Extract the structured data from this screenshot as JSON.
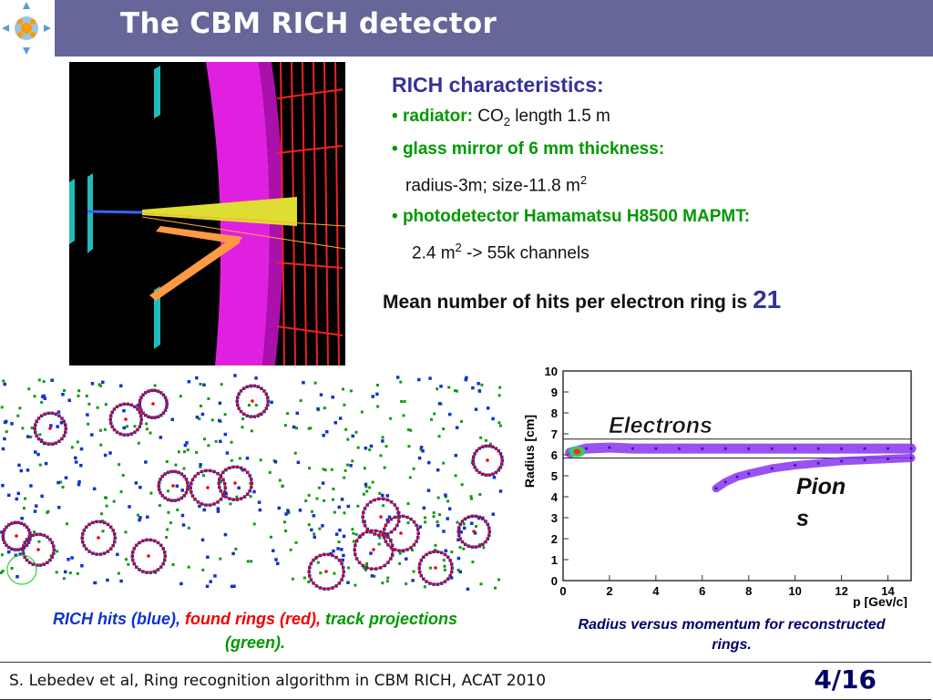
{
  "header": {
    "title": "The CBM RICH detector"
  },
  "characteristics": {
    "heading": "RICH characteristics:",
    "bullet1": {
      "label": "radiator:",
      "text_a": "CO",
      "sub": "2",
      "text_b": " length 1.5 m"
    },
    "bullet2": {
      "label": "glass mirror of 6 mm thickness:",
      "detail": "radius-3m; size-11.8 m",
      "sup": "2"
    },
    "bullet3": {
      "label": "photodetector Hamamatsu H8500 MAPMT:",
      "detail_a": "2.4 m",
      "sup": "2",
      "detail_b": " -> 55k channels"
    }
  },
  "mean_hits": {
    "text": "Mean number of hits per electron ring is ",
    "value": "21"
  },
  "hits_caption": {
    "blue": "RICH hits (blue),",
    "red": "found rings (red),",
    "green": "track projections (green)."
  },
  "plot_caption": "Radius versus momentum for reconstructed rings.",
  "footer": {
    "citation": "S. Lebedev et al, Ring recognition algorithm in CBM RICH, ACAT 2010",
    "page": "4/16"
  },
  "colors": {
    "header": "#666699",
    "accent": "#333399",
    "green": "#009900",
    "red": "#ee0000",
    "blue": "#1133cc"
  },
  "chart_data": {
    "type": "scatter",
    "xlabel": "p [Gev/c]",
    "ylabel": "Radius [cm]",
    "xlim": [
      0,
      15
    ],
    "ylim": [
      0,
      10
    ],
    "xticks": [
      "0",
      "2",
      "4",
      "6",
      "8",
      "10",
      "12",
      "14"
    ],
    "yticks": [
      "0",
      "1",
      "2",
      "3",
      "4",
      "5",
      "6",
      "7",
      "8",
      "9",
      "10"
    ],
    "annotations": [
      "Electrons",
      "Pion",
      "s"
    ],
    "reference_lines_y": [
      5.85,
      6.75
    ],
    "series": [
      {
        "x": [
          0.3,
          1,
          2,
          3,
          4,
          5,
          6,
          7,
          8,
          9,
          10,
          11,
          12,
          13,
          14,
          15
        ],
        "y": [
          6.1,
          6.3,
          6.35,
          6.3,
          6.3,
          6.3,
          6.3,
          6.3,
          6.3,
          6.3,
          6.3,
          6.3,
          6.3,
          6.3,
          6.3,
          6.3
        ]
      },
      {
        "x": [
          6.6,
          7,
          7.5,
          8,
          9,
          10,
          11,
          12,
          13,
          14,
          15
        ],
        "y": [
          4.4,
          4.7,
          4.95,
          5.1,
          5.35,
          5.5,
          5.6,
          5.7,
          5.75,
          5.8,
          5.85
        ]
      }
    ]
  }
}
